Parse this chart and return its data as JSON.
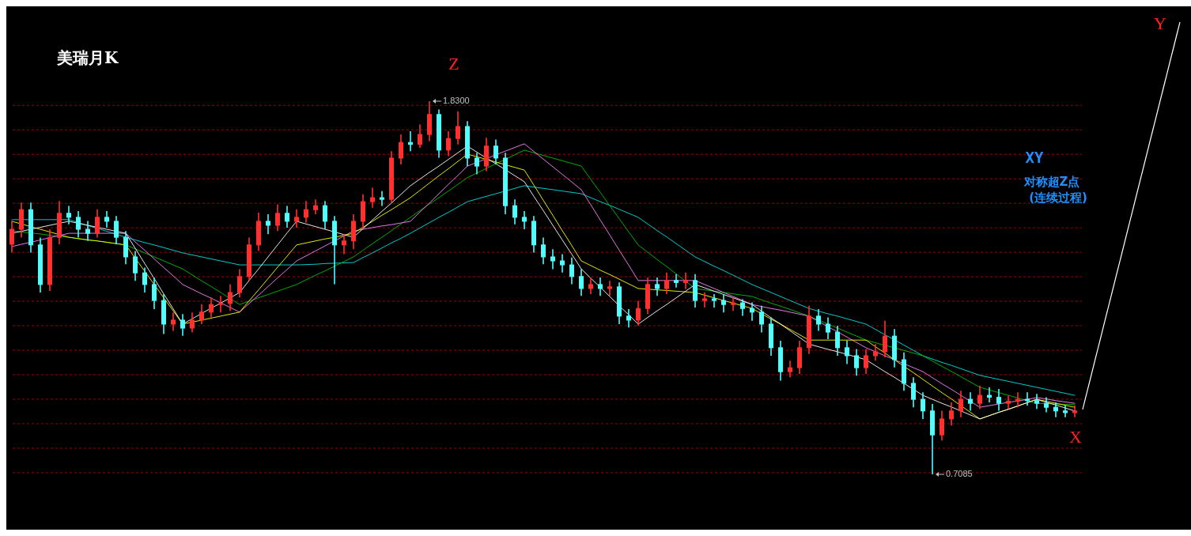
{
  "chart_data": {
    "type": "candlestick",
    "title": "美瑞月K",
    "categories": [
      null,
      null,
      null,
      null,
      null,
      null,
      null,
      null,
      null,
      null,
      null,
      null,
      null,
      null,
      null,
      null,
      null,
      null,
      null,
      null,
      null,
      null,
      null,
      null,
      null,
      null,
      null,
      null,
      null,
      null,
      null,
      null,
      null,
      null,
      null,
      null,
      null,
      null,
      null,
      null,
      null,
      null,
      null,
      null,
      null,
      null,
      null,
      null,
      null,
      null,
      null,
      null,
      null,
      null,
      null,
      null,
      null,
      null,
      null,
      null,
      null,
      null,
      null,
      null,
      null,
      null,
      null,
      null,
      null,
      null,
      null,
      null,
      null,
      null,
      null,
      null,
      null,
      null,
      null,
      null,
      null,
      null,
      null,
      null,
      null,
      null,
      null,
      null,
      null,
      null,
      null,
      null,
      null,
      null,
      null,
      null,
      null,
      null,
      null,
      null,
      null,
      null,
      null,
      null,
      null,
      null,
      null,
      null,
      null,
      null,
      null,
      null,
      null
    ],
    "ohlc": [
      [
        1.4,
        1.47,
        1.375,
        1.445
      ],
      [
        1.445,
        1.525,
        1.42,
        1.504
      ],
      [
        1.504,
        1.525,
        1.375,
        1.398
      ],
      [
        1.398,
        1.42,
        1.255,
        1.279
      ],
      [
        1.279,
        1.445,
        1.26,
        1.421
      ],
      [
        1.421,
        1.53,
        1.4,
        1.493
      ],
      [
        1.493,
        1.515,
        1.46,
        1.481
      ],
      [
        1.481,
        1.5,
        1.42,
        1.445
      ],
      [
        1.445,
        1.47,
        1.41,
        1.433
      ],
      [
        1.433,
        1.505,
        1.42,
        1.481
      ],
      [
        1.481,
        1.5,
        1.45,
        1.469
      ],
      [
        1.469,
        1.485,
        1.4,
        1.421
      ],
      [
        1.421,
        1.44,
        1.34,
        1.362
      ],
      [
        1.362,
        1.38,
        1.29,
        1.314
      ],
      [
        1.314,
        1.33,
        1.255,
        1.279
      ],
      [
        1.279,
        1.3,
        1.205,
        1.231
      ],
      [
        1.231,
        1.25,
        1.13,
        1.16
      ],
      [
        1.16,
        1.195,
        1.14,
        1.172
      ],
      [
        1.172,
        1.19,
        1.125,
        1.148
      ],
      [
        1.148,
        1.195,
        1.135,
        1.172
      ],
      [
        1.172,
        1.22,
        1.16,
        1.196
      ],
      [
        1.196,
        1.24,
        1.18,
        1.219
      ],
      [
        1.219,
        1.245,
        1.195,
        1.222
      ],
      [
        1.222,
        1.28,
        1.2,
        1.255
      ],
      [
        1.255,
        1.325,
        1.24,
        1.303
      ],
      [
        1.303,
        1.42,
        1.29,
        1.398
      ],
      [
        1.398,
        1.495,
        1.38,
        1.469
      ],
      [
        1.469,
        1.49,
        1.43,
        1.457
      ],
      [
        1.457,
        1.52,
        1.44,
        1.493
      ],
      [
        1.493,
        1.515,
        1.45,
        1.469
      ],
      [
        1.469,
        1.505,
        1.45,
        1.481
      ],
      [
        1.481,
        1.53,
        1.465,
        1.504
      ],
      [
        1.504,
        1.535,
        1.49,
        1.516
      ],
      [
        1.516,
        1.53,
        1.445,
        1.469
      ],
      [
        1.469,
        1.485,
        1.28,
        1.398
      ],
      [
        1.398,
        1.43,
        1.37,
        1.41
      ],
      [
        1.41,
        1.49,
        1.385,
        1.469
      ],
      [
        1.469,
        1.55,
        1.45,
        1.528
      ],
      [
        1.528,
        1.57,
        1.51,
        1.54
      ],
      [
        1.54,
        1.56,
        1.515,
        1.535
      ],
      [
        1.535,
        1.68,
        1.525,
        1.659
      ],
      [
        1.659,
        1.73,
        1.64,
        1.706
      ],
      [
        1.706,
        1.74,
        1.68,
        1.7
      ],
      [
        1.7,
        1.76,
        1.69,
        1.73
      ],
      [
        1.73,
        1.83,
        1.71,
        1.79
      ],
      [
        1.79,
        1.805,
        1.66,
        1.683
      ],
      [
        1.683,
        1.74,
        1.665,
        1.718
      ],
      [
        1.718,
        1.8,
        1.7,
        1.754
      ],
      [
        1.754,
        1.77,
        1.635,
        1.659
      ],
      [
        1.659,
        1.675,
        1.61,
        1.635
      ],
      [
        1.635,
        1.72,
        1.62,
        1.695
      ],
      [
        1.695,
        1.715,
        1.64,
        1.659
      ],
      [
        1.659,
        1.675,
        1.49,
        1.516
      ],
      [
        1.516,
        1.535,
        1.46,
        1.481
      ],
      [
        1.481,
        1.5,
        1.445,
        1.469
      ],
      [
        1.469,
        1.485,
        1.375,
        1.398
      ],
      [
        1.398,
        1.42,
        1.34,
        1.362
      ],
      [
        1.362,
        1.385,
        1.325,
        1.35
      ],
      [
        1.35,
        1.37,
        1.315,
        1.338
      ],
      [
        1.338,
        1.36,
        1.28,
        1.303
      ],
      [
        1.303,
        1.325,
        1.245,
        1.267
      ],
      [
        1.267,
        1.3,
        1.25,
        1.279
      ],
      [
        1.279,
        1.3,
        1.245,
        1.267
      ],
      [
        1.267,
        1.29,
        1.245,
        1.272
      ],
      [
        1.272,
        1.285,
        1.16,
        1.184
      ],
      [
        1.184,
        1.205,
        1.15,
        1.172
      ],
      [
        1.172,
        1.23,
        1.155,
        1.207
      ],
      [
        1.207,
        1.3,
        1.19,
        1.279
      ],
      [
        1.279,
        1.3,
        1.245,
        1.267
      ],
      [
        1.267,
        1.315,
        1.25,
        1.291
      ],
      [
        1.291,
        1.31,
        1.27,
        1.285
      ],
      [
        1.285,
        1.315,
        1.265,
        1.291
      ],
      [
        1.291,
        1.31,
        1.21,
        1.231
      ],
      [
        1.231,
        1.255,
        1.21,
        1.236
      ],
      [
        1.236,
        1.25,
        1.21,
        1.231
      ],
      [
        1.231,
        1.25,
        1.195,
        1.219
      ],
      [
        1.219,
        1.24,
        1.2,
        1.224
      ],
      [
        1.224,
        1.235,
        1.185,
        1.207
      ],
      [
        1.207,
        1.225,
        1.17,
        1.196
      ],
      [
        1.196,
        1.215,
        1.135,
        1.16
      ],
      [
        1.16,
        1.18,
        1.065,
        1.089
      ],
      [
        1.089,
        1.11,
        0.99,
        1.017
      ],
      [
        1.017,
        1.05,
        1.0,
        1.029
      ],
      [
        1.029,
        1.11,
        1.01,
        1.089
      ],
      [
        1.089,
        1.215,
        1.07,
        1.184
      ],
      [
        1.184,
        1.205,
        1.14,
        1.16
      ],
      [
        1.16,
        1.18,
        1.115,
        1.136
      ],
      [
        1.136,
        1.155,
        1.065,
        1.089
      ],
      [
        1.089,
        1.11,
        1.04,
        1.065
      ],
      [
        1.065,
        1.085,
        1.005,
        1.029
      ],
      [
        1.029,
        1.085,
        1.01,
        1.065
      ],
      [
        1.065,
        1.1,
        1.05,
        1.077
      ],
      [
        1.077,
        1.17,
        1.06,
        1.124
      ],
      [
        1.124,
        1.145,
        1.03,
        1.053
      ],
      [
        1.053,
        1.075,
        0.96,
        0.982
      ],
      [
        0.982,
        1.0,
        0.91,
        0.934
      ],
      [
        0.934,
        0.955,
        0.875,
        0.899
      ],
      [
        0.899,
        0.92,
        0.7085,
        0.827
      ],
      [
        0.827,
        0.9,
        0.81,
        0.875
      ],
      [
        0.875,
        0.925,
        0.855,
        0.899
      ],
      [
        0.899,
        0.96,
        0.88,
        0.934
      ],
      [
        0.934,
        0.955,
        0.9,
        0.922
      ],
      [
        0.922,
        0.975,
        0.905,
        0.946
      ],
      [
        0.946,
        0.97,
        0.925,
        0.94
      ],
      [
        0.94,
        0.965,
        0.9,
        0.922
      ],
      [
        0.922,
        0.945,
        0.905,
        0.928
      ],
      [
        0.928,
        0.955,
        0.91,
        0.934
      ],
      [
        0.934,
        0.955,
        0.915,
        0.93
      ],
      [
        0.93,
        0.95,
        0.905,
        0.922
      ],
      [
        0.922,
        0.94,
        0.895,
        0.91
      ],
      [
        0.91,
        0.925,
        0.88,
        0.899
      ],
      [
        0.899,
        0.915,
        0.88,
        0.894
      ],
      [
        0.894,
        0.915,
        0.88,
        0.899
      ]
    ],
    "series": [
      {
        "type": "line",
        "color": "#00e0e0",
        "values": [
          1.474,
          1.474,
          1.474,
          1.474,
          1.474,
          1.474,
          1.474,
          1.465,
          1.456,
          1.448,
          1.439,
          1.43,
          1.421,
          1.413,
          1.405,
          1.398,
          1.39,
          1.382,
          1.374,
          1.368,
          1.362,
          1.356,
          1.35,
          1.344,
          1.338,
          1.338,
          1.338,
          1.338,
          1.338,
          1.338,
          1.338,
          1.339,
          1.34,
          1.342,
          1.343,
          1.344,
          1.345,
          1.36,
          1.374,
          1.389,
          1.404,
          1.418,
          1.433,
          1.449,
          1.465,
          1.481,
          1.496,
          1.512,
          1.528,
          1.536,
          1.544,
          1.552,
          1.56,
          1.568,
          1.576,
          1.572,
          1.568,
          1.564,
          1.56,
          1.556,
          1.552,
          1.54,
          1.528,
          1.517,
          1.505,
          1.493,
          1.481,
          1.461,
          1.441,
          1.422,
          1.402,
          1.382,
          1.362,
          1.348,
          1.334,
          1.321,
          1.307,
          1.293,
          1.279,
          1.267,
          1.255,
          1.243,
          1.231,
          1.219,
          1.207,
          1.199,
          1.191,
          1.184,
          1.176,
          1.168,
          1.16,
          1.144,
          1.128,
          1.113,
          1.097,
          1.081,
          1.065,
          1.055,
          1.045,
          1.036,
          1.026,
          1.016,
          1.006,
          1.0,
          0.994,
          0.988,
          0.982,
          0.976,
          0.97,
          0.964,
          0.958,
          0.952,
          0.946
        ]
      },
      {
        "type": "line",
        "color": "#00c000",
        "values": [
          1.44,
          1.437,
          1.434,
          1.431,
          1.427,
          1.424,
          1.421,
          1.417,
          1.413,
          1.41,
          1.406,
          1.402,
          1.398,
          1.386,
          1.374,
          1.362,
          1.35,
          1.338,
          1.326,
          1.308,
          1.29,
          1.273,
          1.255,
          1.237,
          1.219,
          1.229,
          1.239,
          1.249,
          1.259,
          1.269,
          1.279,
          1.293,
          1.307,
          1.32,
          1.334,
          1.348,
          1.362,
          1.382,
          1.402,
          1.421,
          1.441,
          1.461,
          1.481,
          1.501,
          1.521,
          1.54,
          1.56,
          1.58,
          1.6,
          1.614,
          1.628,
          1.642,
          1.655,
          1.669,
          1.683,
          1.675,
          1.667,
          1.659,
          1.651,
          1.643,
          1.635,
          1.595,
          1.556,
          1.516,
          1.477,
          1.437,
          1.398,
          1.376,
          1.354,
          1.333,
          1.311,
          1.289,
          1.267,
          1.263,
          1.259,
          1.255,
          1.251,
          1.247,
          1.243,
          1.233,
          1.223,
          1.214,
          1.204,
          1.194,
          1.184,
          1.172,
          1.16,
          1.148,
          1.136,
          1.124,
          1.112,
          1.104,
          1.096,
          1.089,
          1.081,
          1.073,
          1.065,
          1.049,
          1.033,
          1.018,
          1.002,
          0.986,
          0.97,
          0.962,
          0.954,
          0.946,
          0.938,
          0.93,
          0.922,
          0.921,
          0.92,
          0.919,
          0.918
        ]
      },
      {
        "type": "line",
        "color": "#ff80ff",
        "values": [
          1.393,
          1.4,
          1.406,
          1.413,
          1.42,
          1.426,
          1.433,
          1.433,
          1.433,
          1.433,
          1.433,
          1.433,
          1.433,
          1.407,
          1.382,
          1.356,
          1.33,
          1.305,
          1.279,
          1.265,
          1.251,
          1.238,
          1.224,
          1.21,
          1.196,
          1.222,
          1.247,
          1.273,
          1.299,
          1.324,
          1.35,
          1.365,
          1.38,
          1.395,
          1.41,
          1.425,
          1.44,
          1.445,
          1.45,
          1.455,
          1.459,
          1.464,
          1.469,
          1.497,
          1.524,
          1.552,
          1.58,
          1.607,
          1.635,
          1.646,
          1.657,
          1.669,
          1.68,
          1.691,
          1.702,
          1.679,
          1.656,
          1.633,
          1.61,
          1.587,
          1.564,
          1.519,
          1.473,
          1.428,
          1.382,
          1.337,
          1.291,
          1.291,
          1.291,
          1.291,
          1.291,
          1.291,
          1.291,
          1.279,
          1.267,
          1.255,
          1.243,
          1.231,
          1.219,
          1.213,
          1.207,
          1.202,
          1.196,
          1.19,
          1.184,
          1.168,
          1.152,
          1.137,
          1.121,
          1.105,
          1.089,
          1.077,
          1.065,
          1.053,
          1.041,
          1.029,
          1.017,
          0.999,
          0.981,
          0.964,
          0.946,
          0.928,
          0.91,
          0.915,
          0.92,
          0.925,
          0.929,
          0.934,
          0.939,
          0.935,
          0.93,
          0.926,
          0.922
        ]
      },
      {
        "type": "line",
        "color": "#ffff00",
        "values": [
          1.469,
          1.461,
          1.453,
          1.445,
          1.437,
          1.429,
          1.421,
          1.417,
          1.413,
          1.41,
          1.406,
          1.402,
          1.398,
          1.358,
          1.319,
          1.279,
          1.239,
          1.2,
          1.16,
          1.166,
          1.172,
          1.178,
          1.184,
          1.19,
          1.196,
          1.23,
          1.263,
          1.297,
          1.331,
          1.364,
          1.398,
          1.404,
          1.41,
          1.416,
          1.421,
          1.427,
          1.433,
          1.451,
          1.469,
          1.487,
          1.504,
          1.522,
          1.54,
          1.562,
          1.584,
          1.606,
          1.627,
          1.649,
          1.671,
          1.663,
          1.655,
          1.647,
          1.639,
          1.631,
          1.623,
          1.578,
          1.532,
          1.487,
          1.441,
          1.396,
          1.35,
          1.336,
          1.322,
          1.309,
          1.295,
          1.281,
          1.267,
          1.265,
          1.263,
          1.261,
          1.259,
          1.257,
          1.255,
          1.247,
          1.239,
          1.231,
          1.223,
          1.215,
          1.207,
          1.191,
          1.175,
          1.16,
          1.144,
          1.128,
          1.112,
          1.112,
          1.112,
          1.112,
          1.112,
          1.112,
          1.112,
          1.092,
          1.073,
          1.053,
          1.033,
          1.014,
          0.994,
          0.974,
          0.954,
          0.935,
          0.915,
          0.895,
          0.875,
          0.885,
          0.895,
          0.904,
          0.914,
          0.924,
          0.934,
          0.928,
          0.922,
          0.916,
          0.91
        ]
      },
      {
        "type": "line",
        "color": "#ffffff",
        "values": [
          1.433,
          1.439,
          1.445,
          1.451,
          1.457,
          1.463,
          1.469,
          1.463,
          1.457,
          1.451,
          1.445,
          1.439,
          1.433,
          1.388,
          1.342,
          1.297,
          1.251,
          1.206,
          1.16,
          1.176,
          1.192,
          1.208,
          1.223,
          1.239,
          1.255,
          1.291,
          1.326,
          1.362,
          1.398,
          1.434,
          1.469,
          1.461,
          1.453,
          1.445,
          1.437,
          1.429,
          1.421,
          1.447,
          1.473,
          1.499,
          1.524,
          1.55,
          1.576,
          1.596,
          1.616,
          1.635,
          1.655,
          1.675,
          1.695,
          1.677,
          1.659,
          1.642,
          1.624,
          1.606,
          1.588,
          1.544,
          1.501,
          1.457,
          1.413,
          1.37,
          1.326,
          1.298,
          1.271,
          1.243,
          1.215,
          1.188,
          1.16,
          1.18,
          1.2,
          1.219,
          1.239,
          1.259,
          1.279,
          1.269,
          1.259,
          1.249,
          1.239,
          1.229,
          1.219,
          1.199,
          1.179,
          1.16,
          1.14,
          1.12,
          1.1,
          1.092,
          1.084,
          1.077,
          1.069,
          1.061,
          1.053,
          1.035,
          1.017,
          1.0,
          0.982,
          0.964,
          0.946,
          0.934,
          0.922,
          0.911,
          0.899,
          0.887,
          0.875,
          0.885,
          0.895,
          0.904,
          0.914,
          0.924,
          0.934,
          0.925,
          0.917,
          0.908,
          0.899
        ]
      }
    ],
    "yticks": [
      {
        "value": 0.7135,
        "label": null
      },
      {
        "value": 0.7871,
        "label": null
      },
      {
        "value": 0.8607,
        "label": null
      },
      {
        "value": 0.9343,
        "label": null
      },
      {
        "value": 1.0079,
        "label": null
      },
      {
        "value": 1.0815,
        "label": null
      },
      {
        "value": 1.1551,
        "label": null
      },
      {
        "value": 1.2287,
        "label": null
      },
      {
        "value": 1.3023,
        "label": null
      },
      {
        "value": 1.3759,
        "label": null
      },
      {
        "value": 1.4495,
        "label": null
      },
      {
        "value": 1.5231,
        "label": null
      },
      {
        "value": 1.5967,
        "label": null
      },
      {
        "value": 1.6703,
        "label": null
      },
      {
        "value": 1.7439,
        "label": null
      },
      {
        "value": 1.8175,
        "label": null
      }
    ],
    "grid": "y",
    "annotations": [
      "Z",
      "1.8300",
      "0.7085",
      "X",
      "Y",
      "XY",
      "对称超Z点",
      "(连续过程)"
    ]
  }
}
